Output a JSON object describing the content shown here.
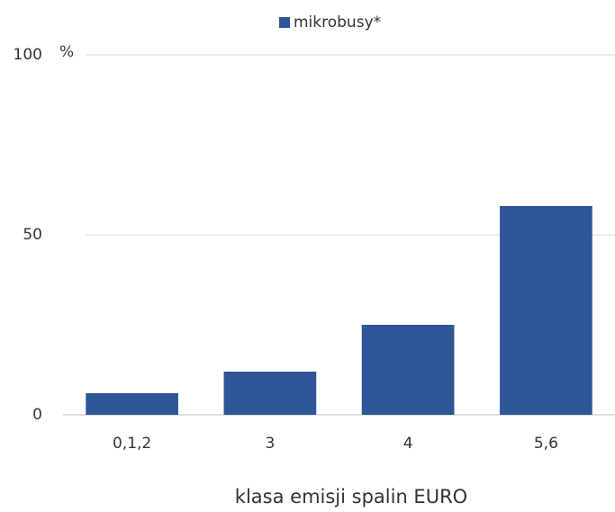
{
  "chart_data": {
    "type": "bar",
    "legend": "mikrobusy*",
    "y_unit": "%",
    "x_label": "klasa emisji spalin EURO",
    "categories": [
      "0,1,2",
      "3",
      "4",
      "5,6"
    ],
    "values": [
      6,
      12,
      25,
      58
    ],
    "color": "#2e5597",
    "ylim": [
      0,
      100
    ],
    "yticks": [
      0,
      50,
      100
    ],
    "grid": true
  }
}
